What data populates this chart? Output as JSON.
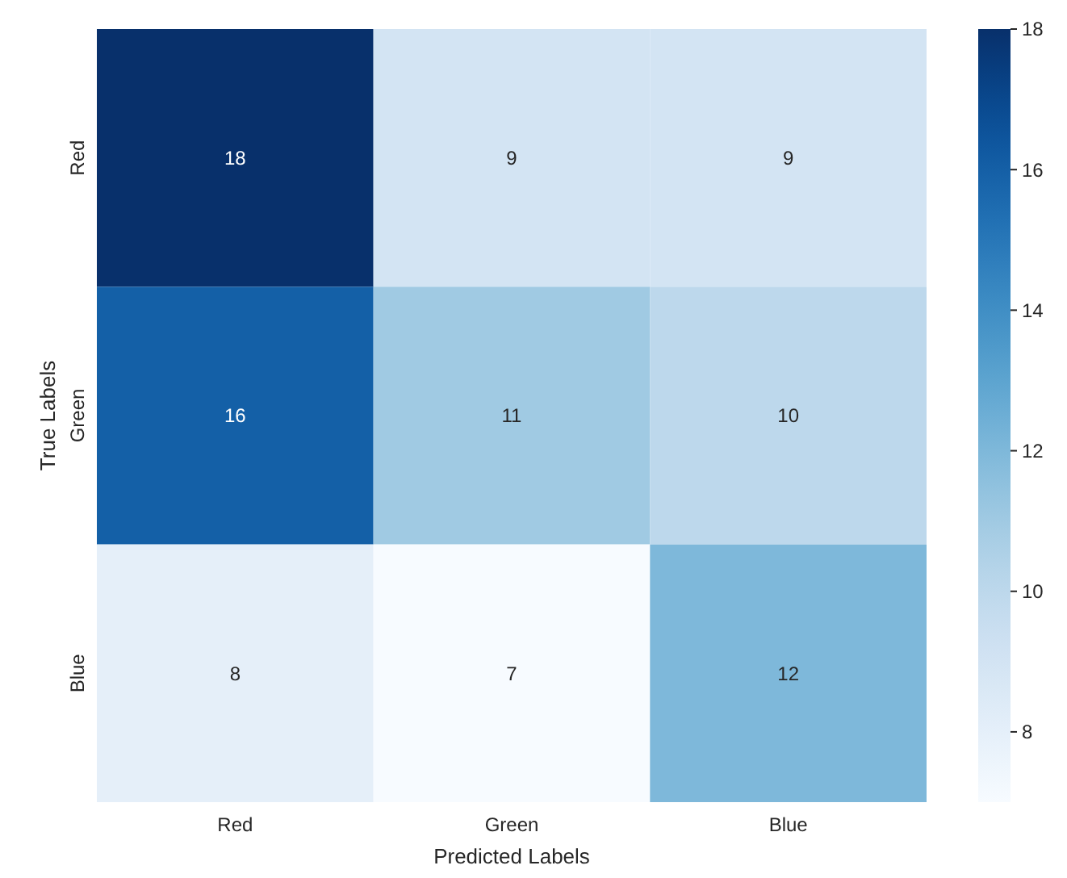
{
  "chart_data": {
    "type": "heatmap",
    "xlabel": "Predicted Labels",
    "ylabel": "True Labels",
    "categories": [
      "Red",
      "Green",
      "Blue"
    ],
    "y_categories": [
      "Red",
      "Green",
      "Blue"
    ],
    "cells": [
      [
        18,
        9,
        9
      ],
      [
        16,
        11,
        10
      ],
      [
        8,
        7,
        12
      ]
    ],
    "clim": [
      7,
      18
    ],
    "cticks": [
      8,
      10,
      12,
      14,
      16,
      18
    ],
    "data_labels": true
  }
}
